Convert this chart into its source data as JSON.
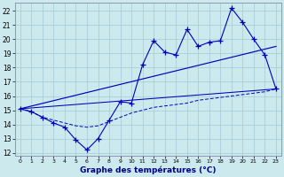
{
  "xlabel": "Graphe des températures (°C)",
  "background_color": "#cce9ee",
  "grid_color": "#a8ccd8",
  "line_color": "#0000bb",
  "hours": [
    0,
    1,
    2,
    3,
    4,
    5,
    6,
    7,
    8,
    9,
    10,
    11,
    12,
    13,
    14,
    15,
    16,
    17,
    18,
    19,
    20,
    21,
    22,
    23
  ],
  "y_main": [
    15.1,
    14.9,
    14.5,
    14.1,
    13.8,
    12.9,
    12.2,
    13.0,
    14.3,
    15.6,
    15.5,
    18.2,
    19.9,
    19.1,
    18.9,
    20.7,
    19.5,
    19.8,
    19.9,
    22.2,
    21.2,
    20.0,
    18.9,
    16.5
  ],
  "y_slow": [
    15.1,
    14.9,
    14.5,
    14.3,
    14.1,
    13.9,
    13.8,
    13.9,
    14.2,
    14.5,
    14.8,
    15.0,
    15.2,
    15.3,
    15.4,
    15.5,
    15.7,
    15.8,
    15.9,
    16.0,
    16.1,
    16.2,
    16.3,
    16.5
  ],
  "y_trend1_x": [
    0,
    23
  ],
  "y_trend1_y": [
    15.1,
    19.5
  ],
  "y_trend2_x": [
    0,
    23
  ],
  "y_trend2_y": [
    15.1,
    16.5
  ],
  "ylim": [
    11.8,
    22.6
  ],
  "xlim": [
    -0.5,
    23.5
  ],
  "yticks": [
    12,
    13,
    14,
    15,
    16,
    17,
    18,
    19,
    20,
    21,
    22
  ],
  "xtick_labels": [
    "0",
    "1",
    "2",
    "3",
    "4",
    "5",
    "6",
    "7",
    "8",
    "9",
    "10",
    "11",
    "12",
    "13",
    "14",
    "15",
    "16",
    "17",
    "18",
    "19",
    "20",
    "21",
    "22",
    "23"
  ]
}
